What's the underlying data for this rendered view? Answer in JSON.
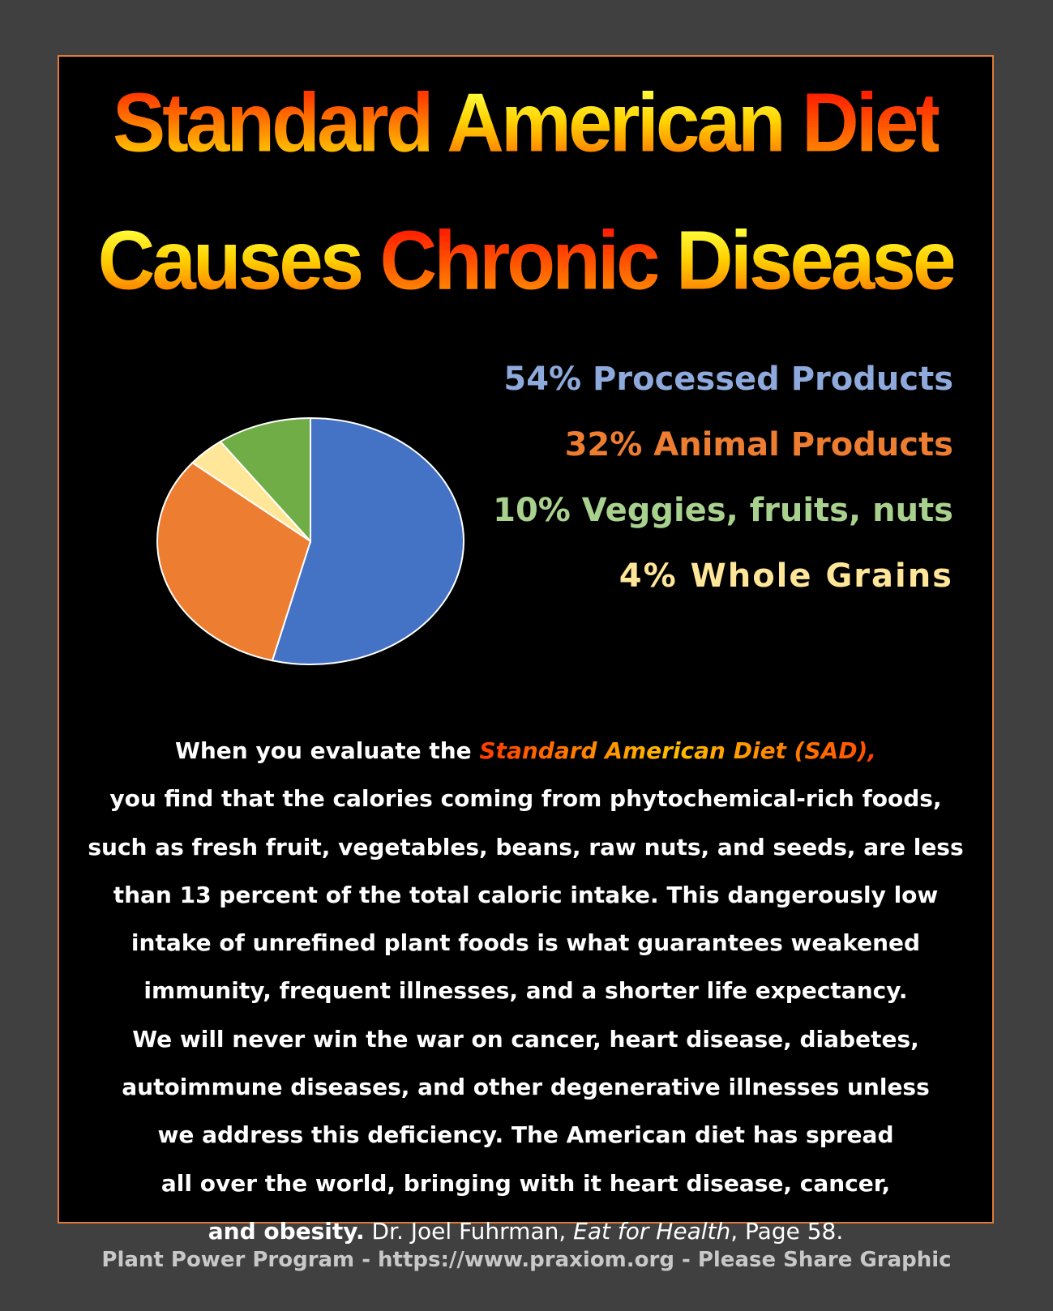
{
  "title": {
    "line1": [
      "Standard",
      "American",
      "Diet"
    ],
    "line2": [
      "Causes",
      "Chronic",
      "Disease"
    ]
  },
  "chart_data": {
    "type": "pie",
    "start": "top",
    "direction": "clockwise",
    "slices": [
      {
        "label": "Processed Products",
        "value": 54,
        "color": "#4472c4",
        "legend_text": "54% Processed Products",
        "legend_color": "#8ea9db"
      },
      {
        "label": "Animal Products",
        "value": 32,
        "color": "#ed7d31",
        "legend_text": "32% Animal Products",
        "legend_color": "#ed7d31"
      },
      {
        "label": "Whole Grains",
        "value": 4,
        "color": "#ffe699",
        "legend_text": "4% Whole Grains",
        "legend_color": "#ffe699"
      },
      {
        "label": "Veggies, fruits, nuts",
        "value": 10,
        "color": "#70ad47",
        "legend_text": "10% Veggies, fruits, nuts",
        "legend_color": "#a9d18e"
      }
    ],
    "legend_order": [
      0,
      1,
      3,
      2
    ]
  },
  "paragraph": {
    "intro": "When you evaluate the ",
    "highlight": "Standard American Diet (SAD)",
    "lines": [
      "you find that the calories coming from phytochemical-rich foods,",
      "such as fresh fruit, vegetables, beans, raw nuts, and seeds, are less",
      "than 13 percent of the total caloric intake. This dangerously low",
      "intake of unrefined plant foods is what guarantees weakened",
      "immunity, frequent illnesses, and a shorter life expectancy.",
      "We will never win the war on cancer, heart disease, diabetes,",
      "autoimmune diseases, and other degenerative illnesses unless",
      "we address this deficiency. The American diet has spread",
      "all over the world, bringing with it heart disease, cancer,"
    ],
    "last_bold": "and obesity.",
    "cite_author": " Dr. Joel Fuhrman, ",
    "cite_book": "Eat for Health",
    "cite_page": ", Page 58."
  },
  "footer": "Plant Power Program - https://www.praxiom.org - Please Share Graphic"
}
